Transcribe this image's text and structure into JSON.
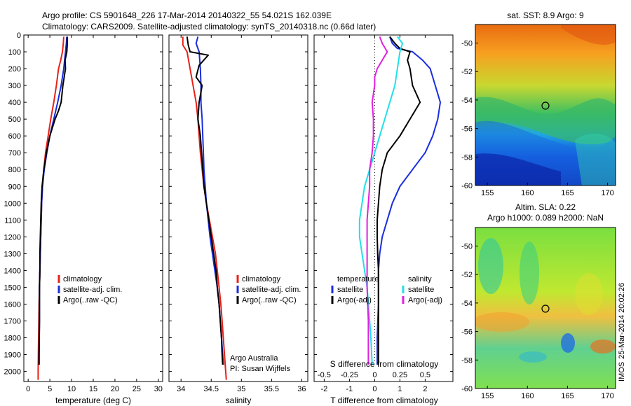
{
  "title_line1": "Argo profile: CS 5901648_226 17-Mar-2014 20140322_55 54.021S 162.039E",
  "title_line2": "Climatology: CARS2009. Satellite-adjusted climatology: synTS_20140318.nc (0.66d later)",
  "sst_title": "sat. SST: 8.9 Argo: 9",
  "sla_title1": "Altim. SLA: 0.22",
  "sla_title2": "Argo h1000: 0.089 h2000: NaN",
  "credit": "IMOS 25-Mar-2014 20:02:26",
  "credit_tag": "IMOS",
  "credit_date": "25-Mar-2014 20:02:26",
  "attribution_line1": "Argo Australia",
  "attribution_line2": "PI: Susan Wijffels",
  "colors": {
    "climatology": "#e8201a",
    "satellite": "#1a2de0",
    "argo": "#000000",
    "argo_adj_s": "#e020e0",
    "satellite_s": "#20e0e8"
  },
  "chart_data": [
    {
      "type": "line",
      "panel": "temperature",
      "xlabel": "temperature (deg C)",
      "ylabel": "",
      "xlim": [
        -1,
        31
      ],
      "ylim": [
        2060,
        0
      ],
      "xticks": [
        0,
        5,
        10,
        15,
        20,
        25,
        30
      ],
      "yticks": [
        0,
        100,
        200,
        300,
        400,
        500,
        600,
        700,
        800,
        900,
        1000,
        1100,
        1200,
        1300,
        1400,
        1500,
        1600,
        1700,
        1800,
        1900,
        2000
      ],
      "legend": [
        "climatology",
        "satellite-adj. clim.",
        "Argo(..raw -QC)"
      ],
      "series": [
        {
          "name": "climatology",
          "color": "#e8201a",
          "points": [
            [
              8.2,
              10
            ],
            [
              8.1,
              50
            ],
            [
              7.9,
              100
            ],
            [
              7.5,
              150
            ],
            [
              7.0,
              200
            ],
            [
              6.5,
              300
            ],
            [
              5.9,
              400
            ],
            [
              5.2,
              500
            ],
            [
              4.6,
              600
            ],
            [
              4.0,
              700
            ],
            [
              3.6,
              800
            ],
            [
              3.3,
              900
            ],
            [
              3.1,
              1000
            ],
            [
              3.0,
              1100
            ],
            [
              2.9,
              1200
            ],
            [
              2.8,
              1300
            ],
            [
              2.7,
              1400
            ],
            [
              2.6,
              1500
            ],
            [
              2.5,
              1600
            ],
            [
              2.4,
              1800
            ],
            [
              2.3,
              2000
            ],
            [
              2.3,
              2050
            ]
          ]
        },
        {
          "name": "satellite-adj. clim.",
          "color": "#1a2de0",
          "points": [
            [
              8.9,
              10
            ],
            [
              8.8,
              50
            ],
            [
              8.6,
              100
            ],
            [
              8.2,
              200
            ],
            [
              7.6,
              300
            ],
            [
              6.8,
              400
            ],
            [
              5.9,
              500
            ],
            [
              5.0,
              600
            ],
            [
              4.3,
              700
            ],
            [
              3.7,
              800
            ],
            [
              3.3,
              900
            ],
            [
              3.1,
              1000
            ],
            [
              3.0,
              1100
            ],
            [
              2.9,
              1200
            ],
            [
              2.8,
              1300
            ],
            [
              2.7,
              1400
            ],
            [
              2.6,
              1500
            ],
            [
              2.6,
              1700
            ],
            [
              2.5,
              1900
            ],
            [
              2.5,
              1960
            ]
          ]
        },
        {
          "name": "Argo(..raw -QC)",
          "color": "#000000",
          "points": [
            [
              9.0,
              10
            ],
            [
              9.0,
              60
            ],
            [
              8.9,
              100
            ],
            [
              8.5,
              150
            ],
            [
              8.6,
              200
            ],
            [
              8.0,
              300
            ],
            [
              7.6,
              400
            ],
            [
              7.0,
              450
            ],
            [
              6.2,
              500
            ],
            [
              5.6,
              550
            ],
            [
              5.0,
              600
            ],
            [
              4.2,
              700
            ],
            [
              3.6,
              800
            ],
            [
              3.2,
              900
            ],
            [
              3.0,
              1000
            ],
            [
              2.9,
              1100
            ],
            [
              2.8,
              1200
            ],
            [
              2.7,
              1300
            ],
            [
              2.7,
              1400
            ],
            [
              2.6,
              1500
            ],
            [
              2.6,
              1700
            ],
            [
              2.5,
              1900
            ],
            [
              2.5,
              1960
            ]
          ]
        }
      ]
    },
    {
      "type": "line",
      "panel": "salinity",
      "xlabel": "salinity",
      "ylabel": "",
      "xlim": [
        33.8,
        36.1
      ],
      "ylim": [
        2060,
        0
      ],
      "xticks": [
        34,
        34.5,
        35,
        35.5,
        36
      ],
      "legend": [
        "climatology",
        "satellite-adj. clim.",
        "Argo(..raw -QC)"
      ],
      "series": [
        {
          "name": "climatology",
          "color": "#e8201a",
          "points": [
            [
              34.03,
              10
            ],
            [
              34.03,
              60
            ],
            [
              34.1,
              100
            ],
            [
              34.15,
              200
            ],
            [
              34.2,
              300
            ],
            [
              34.25,
              400
            ],
            [
              34.28,
              500
            ],
            [
              34.3,
              600
            ],
            [
              34.32,
              700
            ],
            [
              34.35,
              800
            ],
            [
              34.38,
              900
            ],
            [
              34.42,
              1000
            ],
            [
              34.47,
              1100
            ],
            [
              34.52,
              1200
            ],
            [
              34.57,
              1300
            ],
            [
              34.6,
              1400
            ],
            [
              34.63,
              1500
            ],
            [
              34.66,
              1600
            ],
            [
              34.68,
              1700
            ],
            [
              34.7,
              1800
            ],
            [
              34.72,
              1900
            ],
            [
              34.74,
              2000
            ],
            [
              34.75,
              2050
            ]
          ]
        },
        {
          "name": "satellite-adj. clim.",
          "color": "#1a2de0",
          "points": [
            [
              34.28,
              10
            ],
            [
              34.25,
              50
            ],
            [
              34.3,
              100
            ],
            [
              34.32,
              200
            ],
            [
              34.33,
              300
            ],
            [
              34.33,
              400
            ],
            [
              34.35,
              500
            ],
            [
              34.36,
              600
            ],
            [
              34.37,
              700
            ],
            [
              34.38,
              800
            ],
            [
              34.4,
              900
            ],
            [
              34.42,
              1000
            ],
            [
              34.45,
              1100
            ],
            [
              34.48,
              1200
            ],
            [
              34.52,
              1300
            ],
            [
              34.56,
              1400
            ],
            [
              34.6,
              1500
            ],
            [
              34.63,
              1600
            ],
            [
              34.65,
              1700
            ],
            [
              34.67,
              1800
            ],
            [
              34.69,
              1900
            ],
            [
              34.7,
              1960
            ]
          ]
        },
        {
          "name": "Argo(..raw -QC)",
          "color": "#000000",
          "points": [
            [
              34.1,
              10
            ],
            [
              34.12,
              60
            ],
            [
              34.15,
              100
            ],
            [
              34.45,
              120
            ],
            [
              34.3,
              180
            ],
            [
              34.25,
              250
            ],
            [
              34.35,
              300
            ],
            [
              34.3,
              400
            ],
            [
              34.28,
              500
            ],
            [
              34.32,
              600
            ],
            [
              34.34,
              700
            ],
            [
              34.36,
              800
            ],
            [
              34.38,
              900
            ],
            [
              34.42,
              1000
            ],
            [
              34.46,
              1100
            ],
            [
              34.5,
              1200
            ],
            [
              34.54,
              1300
            ],
            [
              34.58,
              1400
            ],
            [
              34.6,
              1500
            ],
            [
              34.63,
              1600
            ],
            [
              34.65,
              1700
            ],
            [
              34.67,
              1800
            ],
            [
              34.68,
              1900
            ],
            [
              34.69,
              1960
            ]
          ]
        }
      ]
    },
    {
      "type": "line",
      "panel": "difference",
      "xlabel": "T difference from climatology",
      "xlabel2": "S difference from climatology",
      "ylabel": "",
      "xlim": [
        -2.4,
        3.1
      ],
      "ylim": [
        2060,
        0
      ],
      "xticks_T": [
        -2,
        -1,
        0,
        1,
        2
      ],
      "xticks_S": [
        "-0.5",
        "-0.25",
        "0",
        "0.25",
        "0.5"
      ],
      "legend_T": [
        "temperature",
        "satellite",
        "Argo(-adj)"
      ],
      "legend_S": [
        "salinity",
        "satellite",
        "Argo(-adj)"
      ],
      "series": [
        {
          "name": "temperature satellite",
          "color": "#1a2de0",
          "points": [
            [
              0.6,
              10
            ],
            [
              0.7,
              50
            ],
            [
              0.9,
              80
            ],
            [
              1.5,
              100
            ],
            [
              1.9,
              150
            ],
            [
              2.2,
              200
            ],
            [
              2.4,
              300
            ],
            [
              2.6,
              400
            ],
            [
              2.5,
              500
            ],
            [
              2.3,
              600
            ],
            [
              2.0,
              700
            ],
            [
              1.5,
              800
            ],
            [
              1.0,
              900
            ],
            [
              0.7,
              1000
            ],
            [
              0.5,
              1100
            ],
            [
              0.3,
              1200
            ],
            [
              0.2,
              1300
            ],
            [
              0.15,
              1400
            ],
            [
              0.15,
              1600
            ],
            [
              0.1,
              1800
            ],
            [
              0.1,
              1960
            ]
          ]
        },
        {
          "name": "temperature Argo(-adj)",
          "color": "#000000",
          "points": [
            [
              0.6,
              10
            ],
            [
              0.8,
              50
            ],
            [
              1.0,
              80
            ],
            [
              1.4,
              100
            ],
            [
              1.3,
              150
            ],
            [
              1.4,
              200
            ],
            [
              1.5,
              300
            ],
            [
              1.8,
              400
            ],
            [
              1.4,
              500
            ],
            [
              1.0,
              600
            ],
            [
              0.5,
              700
            ],
            [
              0.3,
              800
            ],
            [
              0.2,
              900
            ],
            [
              0.15,
              1000
            ],
            [
              0.1,
              1100
            ],
            [
              0.1,
              1200
            ],
            [
              0.12,
              1300
            ],
            [
              0.15,
              1400
            ],
            [
              0.15,
              1600
            ],
            [
              0.15,
              1800
            ],
            [
              0.15,
              1960
            ]
          ]
        },
        {
          "name": "salinity satellite",
          "color": "#20e0e8",
          "points": [
            [
              0.9,
              10
            ],
            [
              1.1,
              50
            ],
            [
              1.0,
              100
            ],
            [
              0.9,
              200
            ],
            [
              0.8,
              300
            ],
            [
              0.6,
              400
            ],
            [
              0.4,
              500
            ],
            [
              0.2,
              600
            ],
            [
              0.0,
              700
            ],
            [
              -0.2,
              800
            ],
            [
              -0.4,
              900
            ],
            [
              -0.5,
              1000
            ],
            [
              -0.6,
              1100
            ],
            [
              -0.6,
              1200
            ],
            [
              -0.5,
              1300
            ],
            [
              -0.4,
              1400
            ],
            [
              -0.3,
              1500
            ],
            [
              -0.25,
              1600
            ],
            [
              -0.2,
              1700
            ],
            [
              -0.15,
              1800
            ],
            [
              -0.1,
              1960
            ]
          ]
        },
        {
          "name": "salinity Argo(-adj)",
          "color": "#e020e0",
          "points": [
            [
              0.2,
              10
            ],
            [
              0.3,
              50
            ],
            [
              0.5,
              100
            ],
            [
              0.3,
              150
            ],
            [
              0.1,
              200
            ],
            [
              0.0,
              250
            ],
            [
              0.0,
              300
            ],
            [
              -0.1,
              400
            ],
            [
              -0.05,
              500
            ],
            [
              -0.05,
              600
            ],
            [
              -0.1,
              700
            ],
            [
              -0.2,
              800
            ],
            [
              -0.2,
              900
            ],
            [
              -0.25,
              1000
            ],
            [
              -0.3,
              1100
            ],
            [
              -0.3,
              1300
            ],
            [
              -0.3,
              1500
            ],
            [
              -0.25,
              1700
            ],
            [
              -0.25,
              1900
            ],
            [
              -0.25,
              1960
            ]
          ]
        }
      ]
    }
  ],
  "maps": [
    {
      "name": "sst-map",
      "xticks": [
        155,
        160,
        165,
        170
      ],
      "yticks": [
        -50,
        -52,
        -54,
        -56,
        -58,
        -60
      ]
    },
    {
      "name": "sla-map",
      "xticks": [
        155,
        160,
        165,
        170
      ],
      "yticks": [
        -50,
        -52,
        -54,
        -56,
        -58,
        -60
      ]
    }
  ]
}
